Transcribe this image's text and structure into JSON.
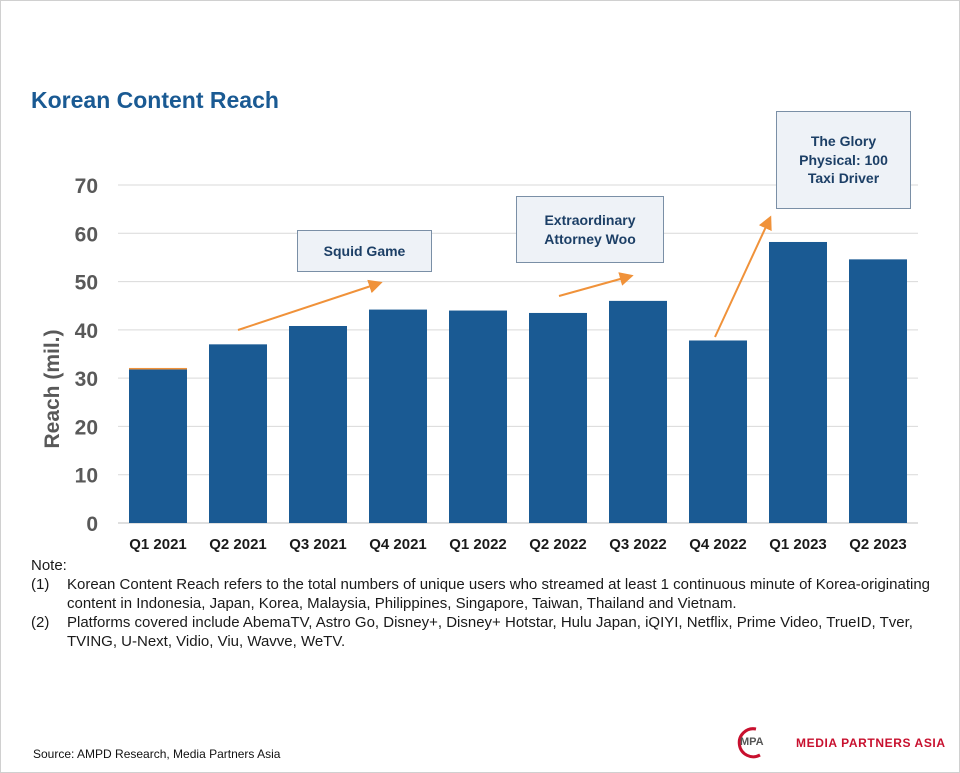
{
  "title": "Korean Content Reach",
  "chart_data": {
    "type": "bar",
    "title": "Korean Content Reach",
    "xlabel": "",
    "ylabel": "Reach (mil.)",
    "ylim": [
      0,
      70
    ],
    "yticks": [
      0,
      10,
      20,
      30,
      40,
      50,
      60,
      70
    ],
    "grid": true,
    "categories": [
      "Q1 2021",
      "Q2 2021",
      "Q3 2021",
      "Q4 2021",
      "Q1 2022",
      "Q2 2022",
      "Q3 2022",
      "Q4 2022",
      "Q1 2023",
      "Q2 2023"
    ],
    "values": [
      31.8,
      37,
      40.8,
      44.2,
      44,
      43.5,
      46,
      37.8,
      58.2,
      54.6
    ],
    "bar_color": "#1a5a93",
    "accent_color": "#f0923a",
    "annotations": [
      {
        "lines": [
          "Squid Game"
        ]
      },
      {
        "lines": [
          "Extraordinary",
          "Attorney Woo"
        ]
      },
      {
        "lines": [
          "The Glory",
          "Physical: 100",
          "Taxi Driver"
        ]
      }
    ]
  },
  "notes": {
    "heading": "Note:",
    "items": [
      {
        "num": "(1)",
        "text": "Korean Content Reach refers to the total numbers of unique users who streamed at least 1 continuous minute of Korea-originating content in Indonesia, Japan, Korea, Malaysia, Philippines, Singapore, Taiwan, Thailand and Vietnam."
      },
      {
        "num": "(2)",
        "text": "Platforms covered include AbemaTV, Astro Go, Disney+, Disney+ Hotstar, Hulu Japan, iQIYI, Netflix, Prime Video, TrueID, Tver, TVING, U-Next, Vidio, Viu, Wavve, WeTV."
      }
    ]
  },
  "source": "Source: AMPD Research, Media Partners Asia",
  "logo": {
    "mark": "MPA",
    "name": "MEDIA PARTNERS ASIA",
    "color": "#c8102e"
  }
}
